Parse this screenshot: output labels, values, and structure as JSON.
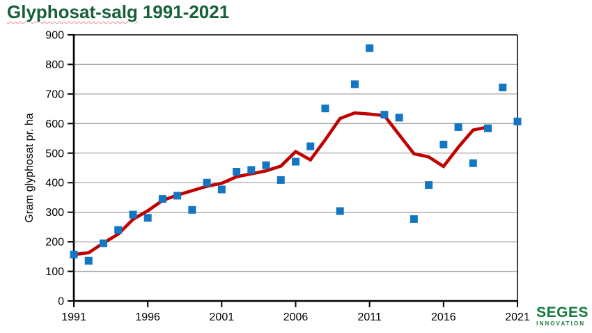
{
  "header": {
    "title_main": "Glyphosat-salg",
    "title_range": "1991-2021"
  },
  "logo": {
    "name": "SEGES",
    "subtitle": "INNOVATION"
  },
  "colors": {
    "title_green": "#17603A",
    "logo_green": "#157A3C",
    "point_blue": "#1276C3",
    "trend_red": "#C00000",
    "grid_gray": "#A6A6A6",
    "axis_black": "#000000"
  },
  "chart_data": {
    "type": "scatter",
    "title": "Glyphosat-salg 1991-2021",
    "ylabel": "Gram glyphosat pr. ha",
    "xlabel": "",
    "ylim": [
      0,
      900
    ],
    "yticks": [
      0,
      100,
      200,
      300,
      400,
      500,
      600,
      700,
      800,
      900
    ],
    "xlim": [
      1991,
      2021
    ],
    "xticks": [
      1991,
      1996,
      2001,
      2006,
      2011,
      2016,
      2021
    ],
    "grid": "horizontal-only",
    "legend": "none",
    "points": {
      "color": "#1276C3",
      "marker": "square",
      "years": [
        1991,
        1992,
        1993,
        1994,
        1995,
        1996,
        1997,
        1998,
        1999,
        2000,
        2001,
        2002,
        2003,
        2004,
        2005,
        2006,
        2007,
        2008,
        2009,
        2010,
        2011,
        2012,
        2013,
        2014,
        2015,
        2016,
        2017,
        2018,
        2019,
        2020,
        2021
      ],
      "values": [
        157,
        136,
        195,
        240,
        292,
        281,
        345,
        356,
        308,
        400,
        377,
        437,
        443,
        459,
        409,
        471,
        523,
        651,
        304,
        733,
        855,
        630,
        620,
        277,
        392,
        529,
        588,
        466,
        584,
        722,
        607
      ]
    },
    "trend_line": {
      "color": "#C00000",
      "years": [
        1991,
        1992,
        1993,
        1994,
        1995,
        1996,
        1997,
        1998,
        1999,
        2000,
        2001,
        2002,
        2003,
        2004,
        2005,
        2006,
        2007,
        2008,
        2009,
        2010,
        2011,
        2012,
        2013,
        2014,
        2015,
        2016,
        2017,
        2018,
        2019
      ],
      "values": [
        157,
        163,
        196,
        226,
        276,
        305,
        340,
        358,
        373,
        388,
        398,
        420,
        430,
        440,
        456,
        505,
        477,
        545,
        617,
        636,
        632,
        627,
        562,
        498,
        487,
        455,
        520,
        578,
        588
      ]
    }
  }
}
